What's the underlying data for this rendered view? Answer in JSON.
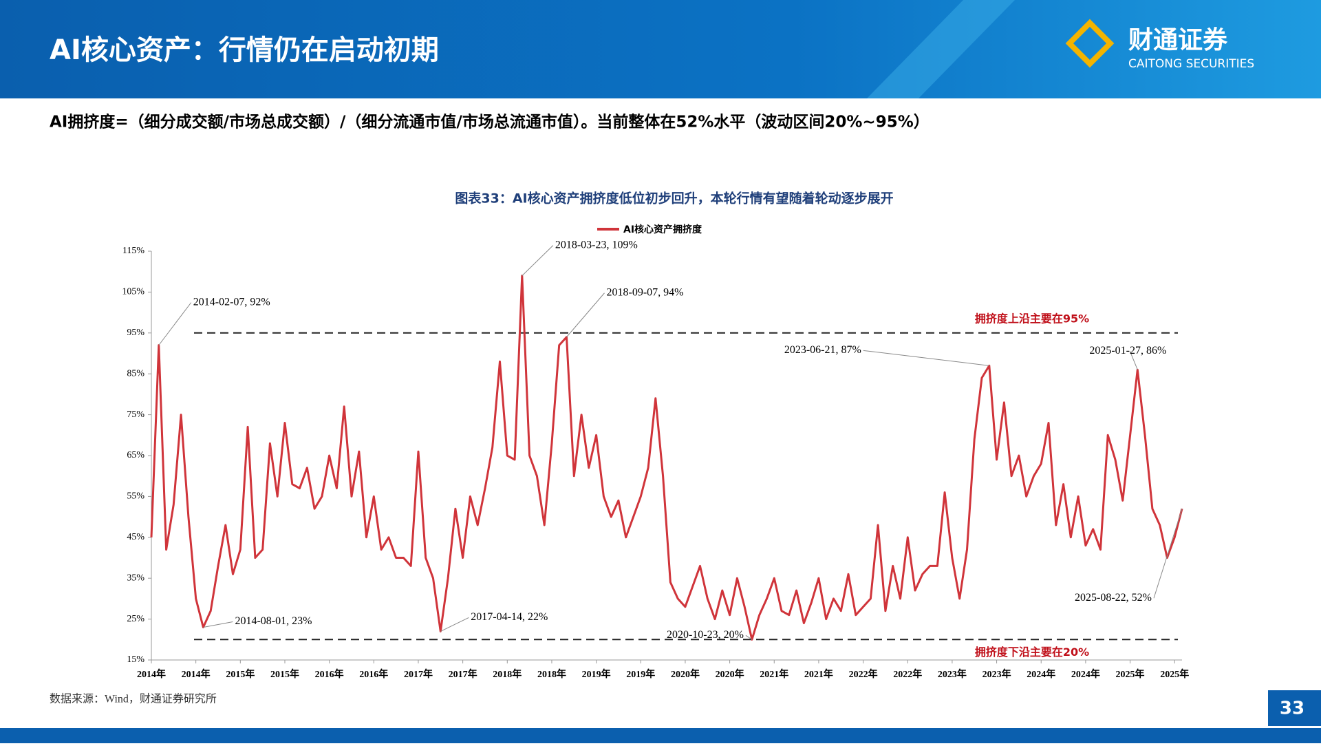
{
  "header": {
    "title": "AI核心资产：行情仍在启动初期",
    "logo_cn": "财通证券",
    "logo_en": "CAITONG SECURITIES"
  },
  "subtitle": "AI拥挤度=（细分成交额/市场总成交额）/（细分流通市值/市场总流通市值）。当前整体在52%水平（波动区间20%~95%）",
  "source": "数据来源：Wind，财通证券研究所",
  "page_number": "33",
  "chart_data": {
    "type": "line",
    "title": "图表33：AI核心资产拥挤度低位初步回升，本轮行情有望随着轮动逐步展开",
    "categories": [
      "2014年",
      null,
      null,
      null,
      null,
      null,
      "2014年",
      null,
      null,
      null,
      null,
      null,
      "2015年",
      null,
      null,
      null,
      null,
      null,
      "2015年",
      null,
      null,
      null,
      null,
      null,
      "2016年",
      null,
      null,
      null,
      null,
      null,
      "2016年",
      null,
      null,
      null,
      null,
      null,
      "2017年",
      null,
      null,
      null,
      null,
      null,
      "2017年",
      null,
      null,
      null,
      null,
      null,
      "2018年",
      null,
      null,
      null,
      null,
      null,
      "2018年",
      null,
      null,
      null,
      null,
      null,
      "2019年",
      null,
      null,
      null,
      null,
      null,
      "2019年",
      null,
      null,
      null,
      null,
      null,
      "2020年",
      null,
      null,
      null,
      null,
      null,
      "2020年",
      null,
      null,
      null,
      null,
      null,
      "2021年",
      null,
      null,
      null,
      null,
      null,
      "2021年",
      null,
      null,
      null,
      null,
      null,
      "2022年",
      null,
      null,
      null,
      null,
      null,
      "2022年",
      null,
      null,
      null,
      null,
      null,
      "2023年",
      null,
      null,
      null,
      null,
      null,
      "2023年",
      null,
      null,
      null,
      null,
      null,
      "2024年",
      null,
      null,
      null,
      null,
      null,
      "2024年",
      null,
      null,
      null,
      null,
      null,
      "2025年",
      null,
      null,
      null,
      null,
      null,
      "2025年",
      null
    ],
    "series": [
      {
        "name": "AI核心资产拥挤度",
        "color": "#d0343a",
        "values": [
          45,
          92,
          42,
          53,
          75,
          50,
          30,
          23,
          27,
          38,
          48,
          36,
          42,
          72,
          40,
          42,
          68,
          55,
          73,
          58,
          57,
          62,
          52,
          55,
          65,
          57,
          77,
          55,
          66,
          45,
          55,
          42,
          45,
          40,
          40,
          38,
          66,
          40,
          35,
          22,
          35,
          52,
          40,
          55,
          48,
          57,
          67,
          88,
          65,
          64,
          109,
          65,
          60,
          48,
          68,
          92,
          94,
          60,
          75,
          62,
          70,
          55,
          50,
          54,
          45,
          50,
          55,
          62,
          79,
          60,
          34,
          30,
          28,
          33,
          38,
          30,
          25,
          32,
          26,
          35,
          28,
          20,
          26,
          30,
          35,
          27,
          26,
          32,
          24,
          29,
          35,
          25,
          30,
          27,
          36,
          26,
          28,
          30,
          48,
          27,
          38,
          30,
          45,
          32,
          36,
          38,
          38,
          56,
          40,
          30,
          42,
          69,
          84,
          87,
          64,
          78,
          60,
          65,
          55,
          60,
          63,
          73,
          48,
          58,
          45,
          55,
          43,
          47,
          42,
          70,
          64,
          54,
          70,
          86,
          70,
          52,
          48,
          40,
          45,
          52
        ]
      }
    ],
    "ylim": [
      15,
      115
    ],
    "yticks": [
      {
        "value": 15,
        "label": "15%"
      },
      {
        "value": 25,
        "label": "25%"
      },
      {
        "value": 35,
        "label": "35%"
      },
      {
        "value": 45,
        "label": "45%"
      },
      {
        "value": 55,
        "label": "55%"
      },
      {
        "value": 65,
        "label": "65%"
      },
      {
        "value": 75,
        "label": "75%"
      },
      {
        "value": 85,
        "label": "85%"
      },
      {
        "value": 95,
        "label": "95%"
      },
      {
        "value": 105,
        "label": "105%"
      },
      {
        "value": 115,
        "label": "115%"
      }
    ],
    "reference_lines": [
      {
        "value": 95,
        "label": "拥挤度上沿主要在95%"
      },
      {
        "value": 20,
        "label": "拥挤度下沿主要在20%"
      }
    ],
    "annotations": [
      {
        "label": "2014-02-07, 92%",
        "point": 1
      },
      {
        "label": "2014-08-01, 23%",
        "point": 7
      },
      {
        "label": "2017-04-14, 22%",
        "point": 39
      },
      {
        "label": "2018-03-23, 109%",
        "point": 50
      },
      {
        "label": "2018-09-07, 94%",
        "point": 56
      },
      {
        "label": "2020-10-23, 20%",
        "point": 81
      },
      {
        "label": "2023-06-21, 87%",
        "point": 113
      },
      {
        "label": "2025-01-27, 86%",
        "point": 133
      },
      {
        "label": "2025-08-22, 52%",
        "point": 139
      }
    ],
    "legend": "top"
  }
}
